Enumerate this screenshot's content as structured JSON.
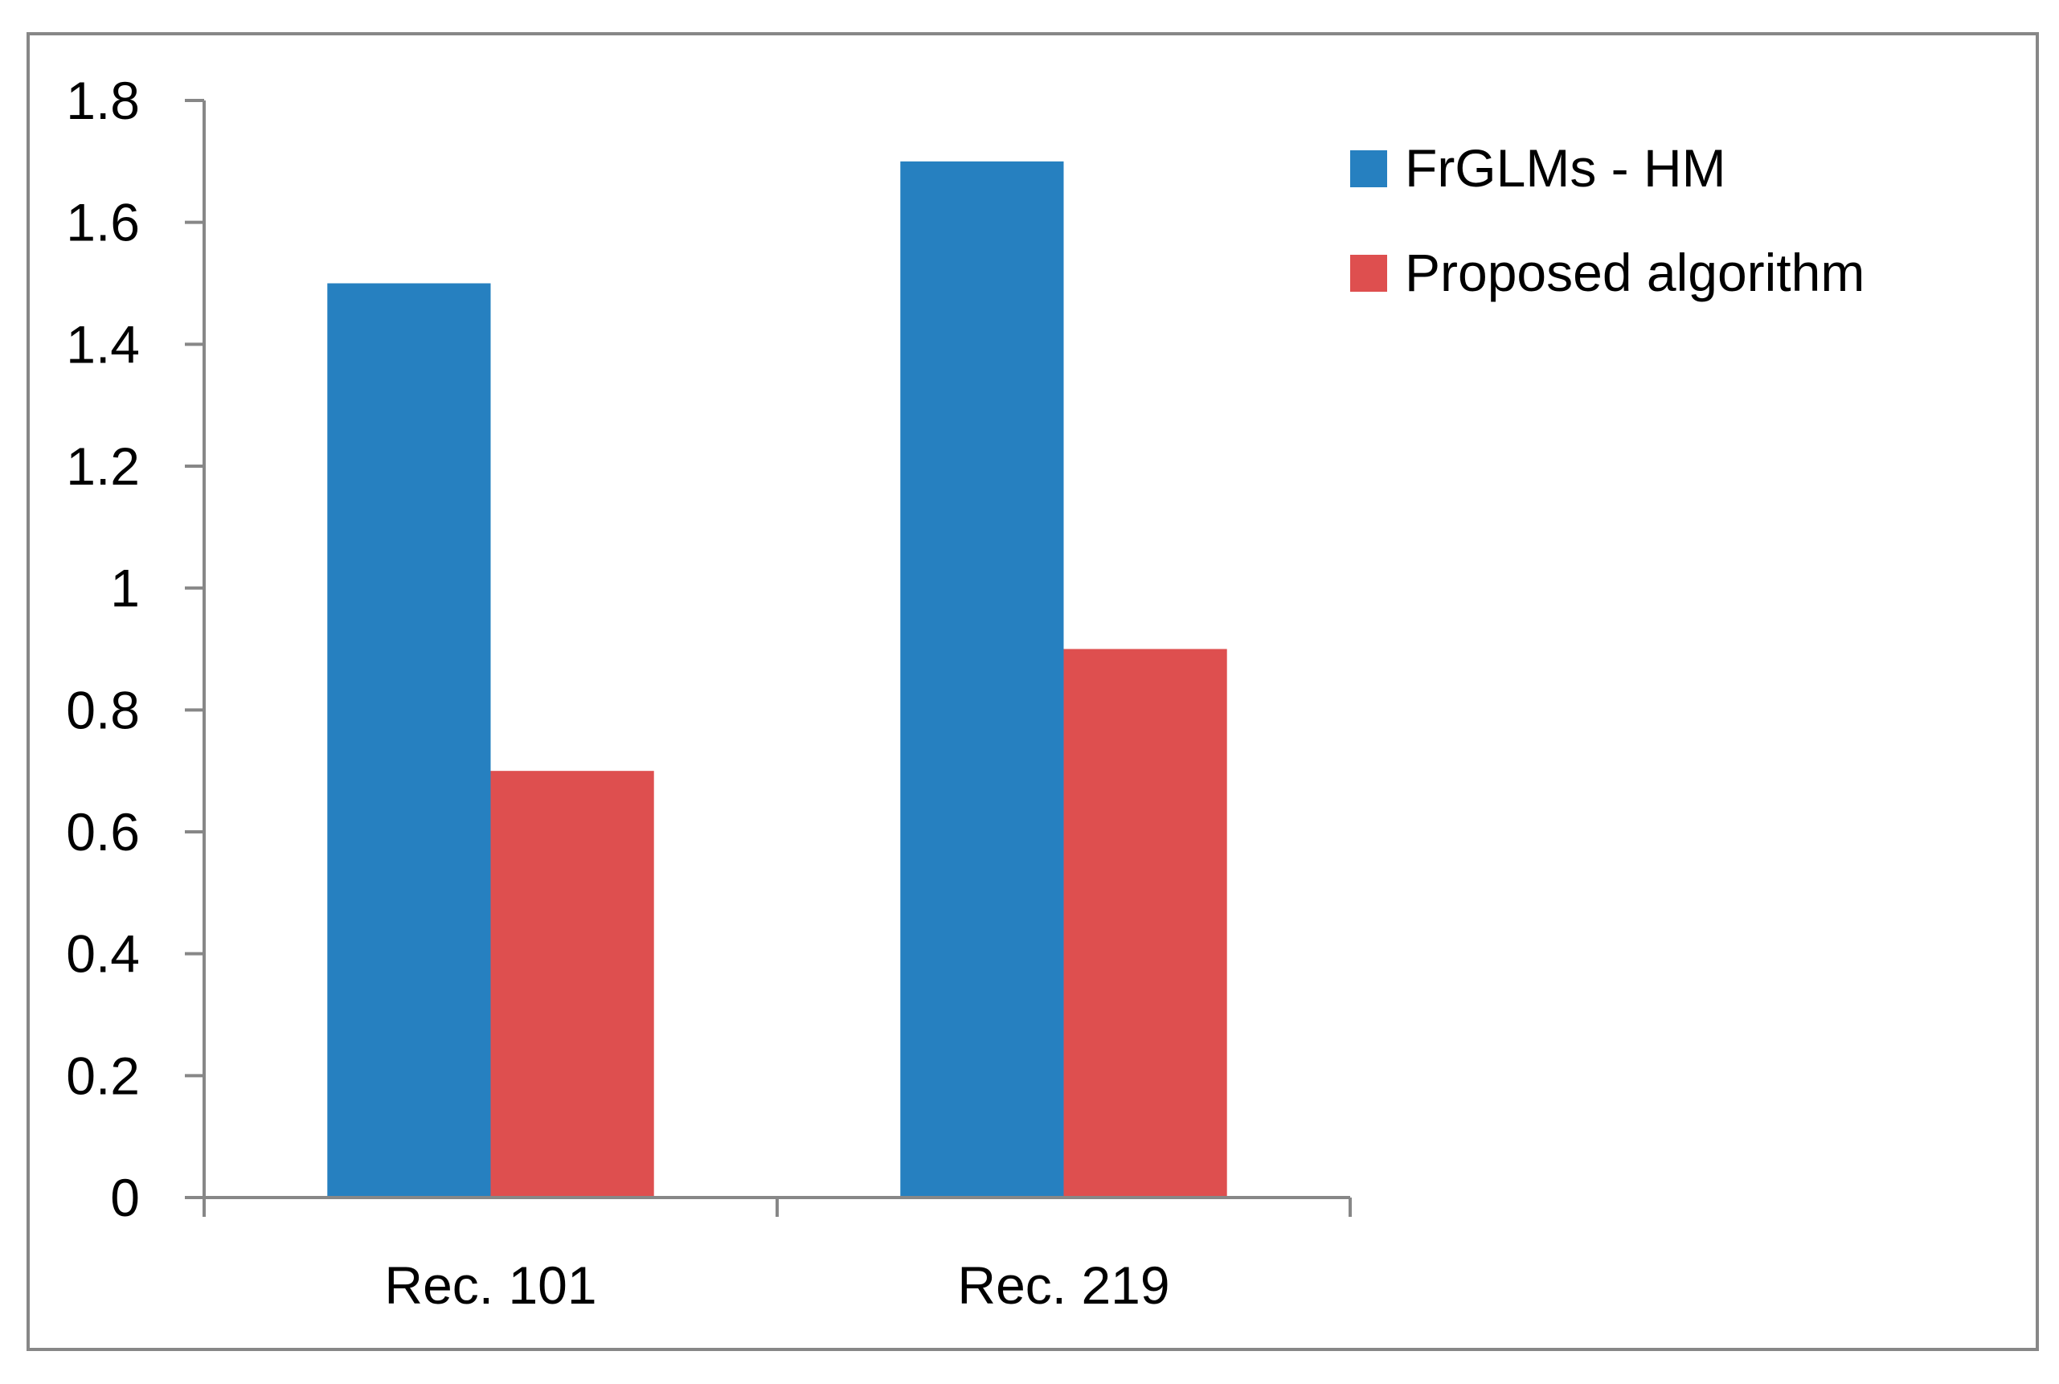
{
  "chart_data": {
    "type": "bar",
    "title": "",
    "xlabel": "",
    "ylabel": "",
    "categories": [
      "Rec. 101",
      "Rec. 219"
    ],
    "series": [
      {
        "name": "FrGLMs - HM",
        "color": "#2680C0",
        "values": [
          1.5,
          1.7
        ]
      },
      {
        "name": "Proposed algorithm",
        "color": "#DE4F4F",
        "values": [
          0.7,
          0.9
        ]
      }
    ],
    "ylim": [
      0,
      1.8
    ],
    "yticks": [
      "0",
      "0.2",
      "0.4",
      "0.6",
      "0.8",
      "1",
      "1.2",
      "1.4",
      "1.6",
      "1.8"
    ],
    "grid": false,
    "legend_position": "right"
  }
}
